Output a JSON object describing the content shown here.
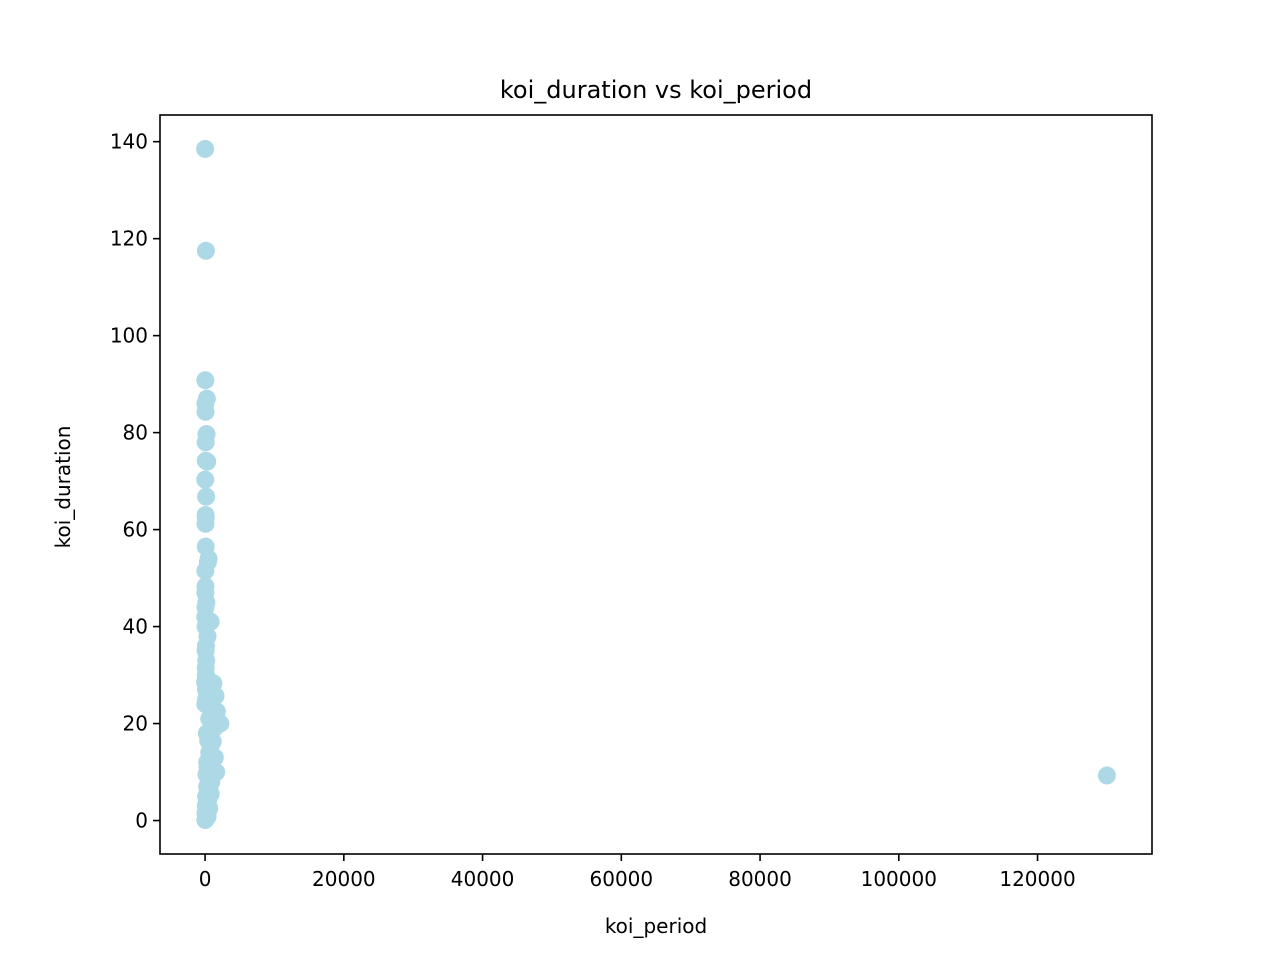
{
  "chart_data": {
    "type": "scatter",
    "title": "koi_duration vs koi_period",
    "xlabel": "koi_period",
    "ylabel": "koi_duration",
    "xlim": [
      -6500,
      136500
    ],
    "ylim": [
      -6.9,
      145.5
    ],
    "xticks": [
      0,
      20000,
      40000,
      60000,
      80000,
      100000,
      120000
    ],
    "yticks": [
      0,
      20,
      40,
      60,
      80,
      100,
      120,
      140
    ],
    "grid": false,
    "legend": "none",
    "marker_color": "#add8e6",
    "series": [
      {
        "x": [
          5,
          120,
          30,
          250,
          40,
          60,
          200,
          80,
          300,
          100,
          20,
          150,
          70,
          400,
          90,
          500,
          35,
          60,
          800,
          45,
          180,
          55,
          25,
          350,
          65,
          120,
          75,
          160,
          90,
          110,
          95,
          220,
          1200,
          130,
          1500,
          140,
          1700,
          600,
          900,
          2200,
          1300,
          250,
          450,
          1100,
          800,
          600,
          1400,
          700,
          300,
          350,
          1000,
          500,
          1600,
          200,
          450,
          750,
          900,
          550,
          300,
          400,
          650,
          800,
          150,
          500,
          250,
          300,
          100,
          600,
          400,
          50,
          200,
          350,
          120,
          80,
          30,
          60,
          100,
          10,
          40,
          500,
          130000
        ],
        "y": [
          138.5,
          117.5,
          90.8,
          87.0,
          86.0,
          84.3,
          79.7,
          78.0,
          74.0,
          74.2,
          70.3,
          66.8,
          63.0,
          53.3,
          56.5,
          54.0,
          51.5,
          48.3,
          41.0,
          47.0,
          45.0,
          44.0,
          42.0,
          38.0,
          40.0,
          36.0,
          35.0,
          33.0,
          31.5,
          30.0,
          29.0,
          28.0,
          28.3,
          27.0,
          25.7,
          25.0,
          22.5,
          21.0,
          21.5,
          20.0,
          19.0,
          18.0,
          16.5,
          16.3,
          15.5,
          14.0,
          13.0,
          12.5,
          12.0,
          11.0,
          11.3,
          10.5,
          10.0,
          9.5,
          9.0,
          8.5,
          8.0,
          7.5,
          7.0,
          6.5,
          6.0,
          5.5,
          5.0,
          4.5,
          4.0,
          3.5,
          3.0,
          2.5,
          2.0,
          1.5,
          1.0,
          0.8,
          0.5,
          0.3,
          0.1,
          61.2,
          62.5,
          28.5,
          24.0,
          7.0,
          9.3
        ]
      }
    ]
  }
}
